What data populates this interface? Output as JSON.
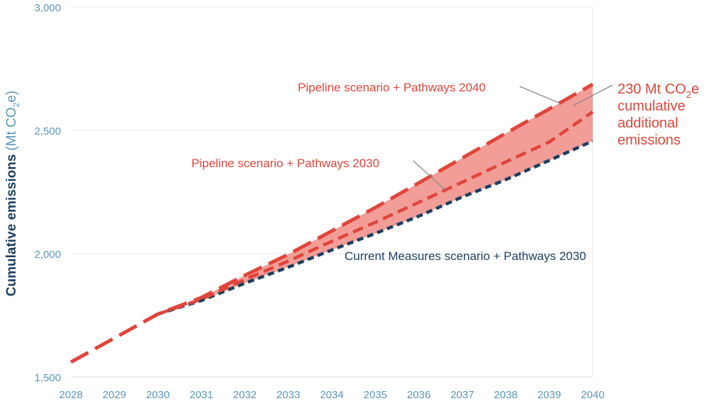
{
  "chart_data": {
    "type": "line",
    "ylabel": "Cumulative emissions",
    "ylabel_unit": "(Mt CO2e)",
    "ylabel_unit_parts": {
      "open": "(Mt CO",
      "sub": "2",
      "close": "e)"
    },
    "xlim": [
      2028,
      2040
    ],
    "ylim": [
      1500,
      3000
    ],
    "x_ticks": [
      2028,
      2029,
      2030,
      2031,
      2032,
      2033,
      2034,
      2035,
      2036,
      2037,
      2038,
      2039,
      2040
    ],
    "x_tick_labels": [
      "2028",
      "2029",
      "2030",
      "2031",
      "2032",
      "2033",
      "2034",
      "2035",
      "2036",
      "2037",
      "2038",
      "2039",
      "2040"
    ],
    "y_ticks": [
      1500,
      2000,
      2500,
      3000
    ],
    "y_tick_labels": [
      "1,500",
      "2,000",
      "2,500",
      "3,000"
    ],
    "grid": "horizontal",
    "series": [
      {
        "name": "Pipeline scenario + Pathways 2040",
        "color": "#e0453b",
        "x": [
          2028,
          2030,
          2031,
          2032,
          2033,
          2034,
          2035,
          2036,
          2037,
          2038,
          2039,
          2040
        ],
        "values": [
          1560,
          1755,
          1822,
          1912,
          1997,
          2092,
          2187,
          2287,
          2388,
          2488,
          2587,
          2687
        ]
      },
      {
        "name": "Pipeline scenario + Pathways 2030",
        "color": "#e0453b",
        "x": [
          2030,
          2031,
          2032,
          2033,
          2034,
          2035,
          2036,
          2037,
          2038,
          2039,
          2040
        ],
        "values": [
          1755,
          1815,
          1895,
          1970,
          2050,
          2127,
          2208,
          2290,
          2372,
          2453,
          2575
        ]
      },
      {
        "name": "Current Measures scenario + Pathways 2030",
        "color": "#1b3f5f",
        "x": [
          2030,
          2031,
          2032,
          2033,
          2034,
          2035,
          2036,
          2037,
          2038,
          2039,
          2040
        ],
        "values": [
          1755,
          1810,
          1880,
          1945,
          2015,
          2082,
          2152,
          2230,
          2300,
          2378,
          2457
        ]
      }
    ],
    "annotations": [
      {
        "text": "Pipeline scenario + Pathways 2040",
        "series": 0
      },
      {
        "text": "Pipeline scenario + Pathways 2030",
        "series": 1
      },
      {
        "text": "Current Measures scenario + Pathways 2030",
        "series": 2
      },
      {
        "lines": [
          "230 Mt CO2e",
          "cumulative",
          "additional",
          "emissions"
        ],
        "first_line_parts": {
          "open": "230 Mt CO",
          "sub": "2",
          "close": "e"
        }
      }
    ]
  }
}
